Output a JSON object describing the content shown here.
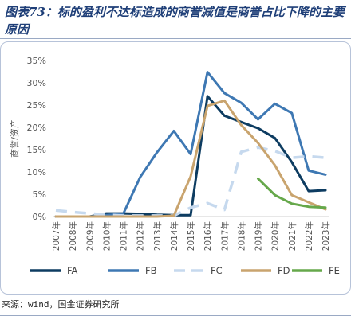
{
  "header": {
    "title": "图表73：标的盈利不达标造成的商誉减值是商誉占比下降的主要原因"
  },
  "footer": {
    "source": "来源：wind，国金证券研究所"
  },
  "chart_data": {
    "type": "line",
    "ylabel": "商誉/资产",
    "ylim": [
      0,
      0.35
    ],
    "yticks": [
      "0%",
      "5%",
      "10%",
      "15%",
      "20%",
      "25%",
      "30%",
      "35%"
    ],
    "categories": [
      "2007年",
      "2008年",
      "2009年",
      "2010年",
      "2011年",
      "2012年",
      "2013年",
      "2014年",
      "2015年",
      "2016年",
      "2017年",
      "2018年",
      "2019年",
      "2020年",
      "2021年",
      "2022年",
      "2023年"
    ],
    "legend_position": "bottom",
    "grid": false,
    "series": [
      {
        "name": "FA",
        "color": "#0d3c61",
        "dash": "solid",
        "values": [
          0.0,
          0.0,
          0.0,
          0.007,
          0.007,
          0.006,
          0.004,
          0.003,
          0.003,
          0.27,
          0.226,
          0.212,
          0.198,
          0.176,
          0.122,
          0.057,
          0.059
        ]
      },
      {
        "name": "FB",
        "color": "#3e78b3",
        "dash": "solid",
        "values": [
          0.0,
          0.0,
          0.0,
          0.003,
          0.006,
          0.088,
          0.144,
          0.192,
          0.14,
          0.324,
          0.277,
          0.255,
          0.218,
          0.253,
          0.232,
          0.103,
          0.094
        ]
      },
      {
        "name": "FC",
        "color": "#c6d9ee",
        "dash": "dashed",
        "values": [
          0.014,
          0.01,
          0.007,
          0.004,
          0.002,
          0.002,
          0.002,
          0.002,
          0.02,
          0.03,
          0.015,
          0.145,
          0.155,
          0.147,
          0.132,
          0.135,
          0.132
        ]
      },
      {
        "name": "FD",
        "color": "#c9a46e",
        "dash": "solid",
        "values": [
          0.0,
          0.0,
          0.0,
          0.0,
          0.0,
          0.0,
          0.0,
          0.002,
          0.09,
          0.248,
          0.26,
          0.205,
          0.165,
          0.115,
          0.048,
          0.032,
          0.016
        ]
      },
      {
        "name": "FE",
        "color": "#66a84b",
        "dash": "solid",
        "values": [
          null,
          null,
          null,
          null,
          null,
          null,
          null,
          null,
          null,
          null,
          null,
          null,
          0.085,
          0.048,
          0.029,
          0.022,
          0.02
        ]
      }
    ]
  }
}
